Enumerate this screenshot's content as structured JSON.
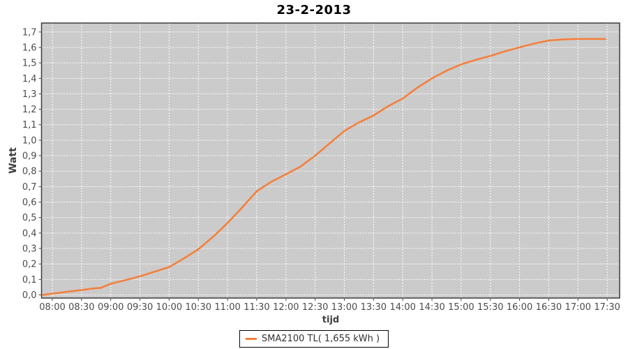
{
  "chart_data": {
    "type": "line",
    "title": "23-2-2013",
    "xlabel": "tijd",
    "ylabel": "Watt",
    "x_ticks": [
      "08:00",
      "08:30",
      "09:00",
      "09:30",
      "10:00",
      "10:30",
      "11:00",
      "11:30",
      "12:00",
      "12:30",
      "13:00",
      "13:30",
      "14:00",
      "14:30",
      "15:00",
      "15:30",
      "16:00",
      "16:30",
      "17:00",
      "17:30"
    ],
    "y_ticks": [
      "0,0",
      "0,1",
      "0,2",
      "0,3",
      "0,4",
      "0,5",
      "0,6",
      "0,7",
      "0,8",
      "0,9",
      "1,0",
      "1,1",
      "1,2",
      "1,3",
      "1,4",
      "1,5",
      "1,6",
      "1,7"
    ],
    "ylim": [
      0,
      1.7
    ],
    "grid": "on",
    "legend_position": "bottom-center",
    "series": [
      {
        "name": "SMA2100 TL( 1,655 kWh )",
        "color": "#F4803D",
        "x_unit": "minutes-after-08:00",
        "data": [
          [
            -10,
            0.0
          ],
          [
            0,
            0.008
          ],
          [
            15,
            0.02
          ],
          [
            30,
            0.031
          ],
          [
            40,
            0.04
          ],
          [
            50,
            0.046
          ],
          [
            60,
            0.072
          ],
          [
            75,
            0.095
          ],
          [
            90,
            0.12
          ],
          [
            105,
            0.15
          ],
          [
            120,
            0.18
          ],
          [
            135,
            0.235
          ],
          [
            150,
            0.295
          ],
          [
            165,
            0.375
          ],
          [
            180,
            0.465
          ],
          [
            195,
            0.565
          ],
          [
            210,
            0.67
          ],
          [
            225,
            0.732
          ],
          [
            240,
            0.78
          ],
          [
            255,
            0.83
          ],
          [
            270,
            0.9
          ],
          [
            285,
            0.98
          ],
          [
            300,
            1.06
          ],
          [
            315,
            1.115
          ],
          [
            330,
            1.16
          ],
          [
            345,
            1.22
          ],
          [
            360,
            1.27
          ],
          [
            375,
            1.34
          ],
          [
            390,
            1.4
          ],
          [
            405,
            1.45
          ],
          [
            420,
            1.49
          ],
          [
            435,
            1.52
          ],
          [
            450,
            1.545
          ],
          [
            465,
            1.575
          ],
          [
            480,
            1.6
          ],
          [
            495,
            1.625
          ],
          [
            510,
            1.645
          ],
          [
            525,
            1.652
          ],
          [
            540,
            1.655
          ],
          [
            555,
            1.655
          ],
          [
            568,
            1.655
          ]
        ]
      }
    ],
    "colors": {
      "page_bg": "#FFFFFF",
      "plot_bg": "#CBCBCB",
      "grid": "#FFFFFF",
      "border": "#3C3C3C",
      "tick_label": "#4B4B4B",
      "axis_label": "#3F3F3F",
      "title": "#000000"
    }
  }
}
